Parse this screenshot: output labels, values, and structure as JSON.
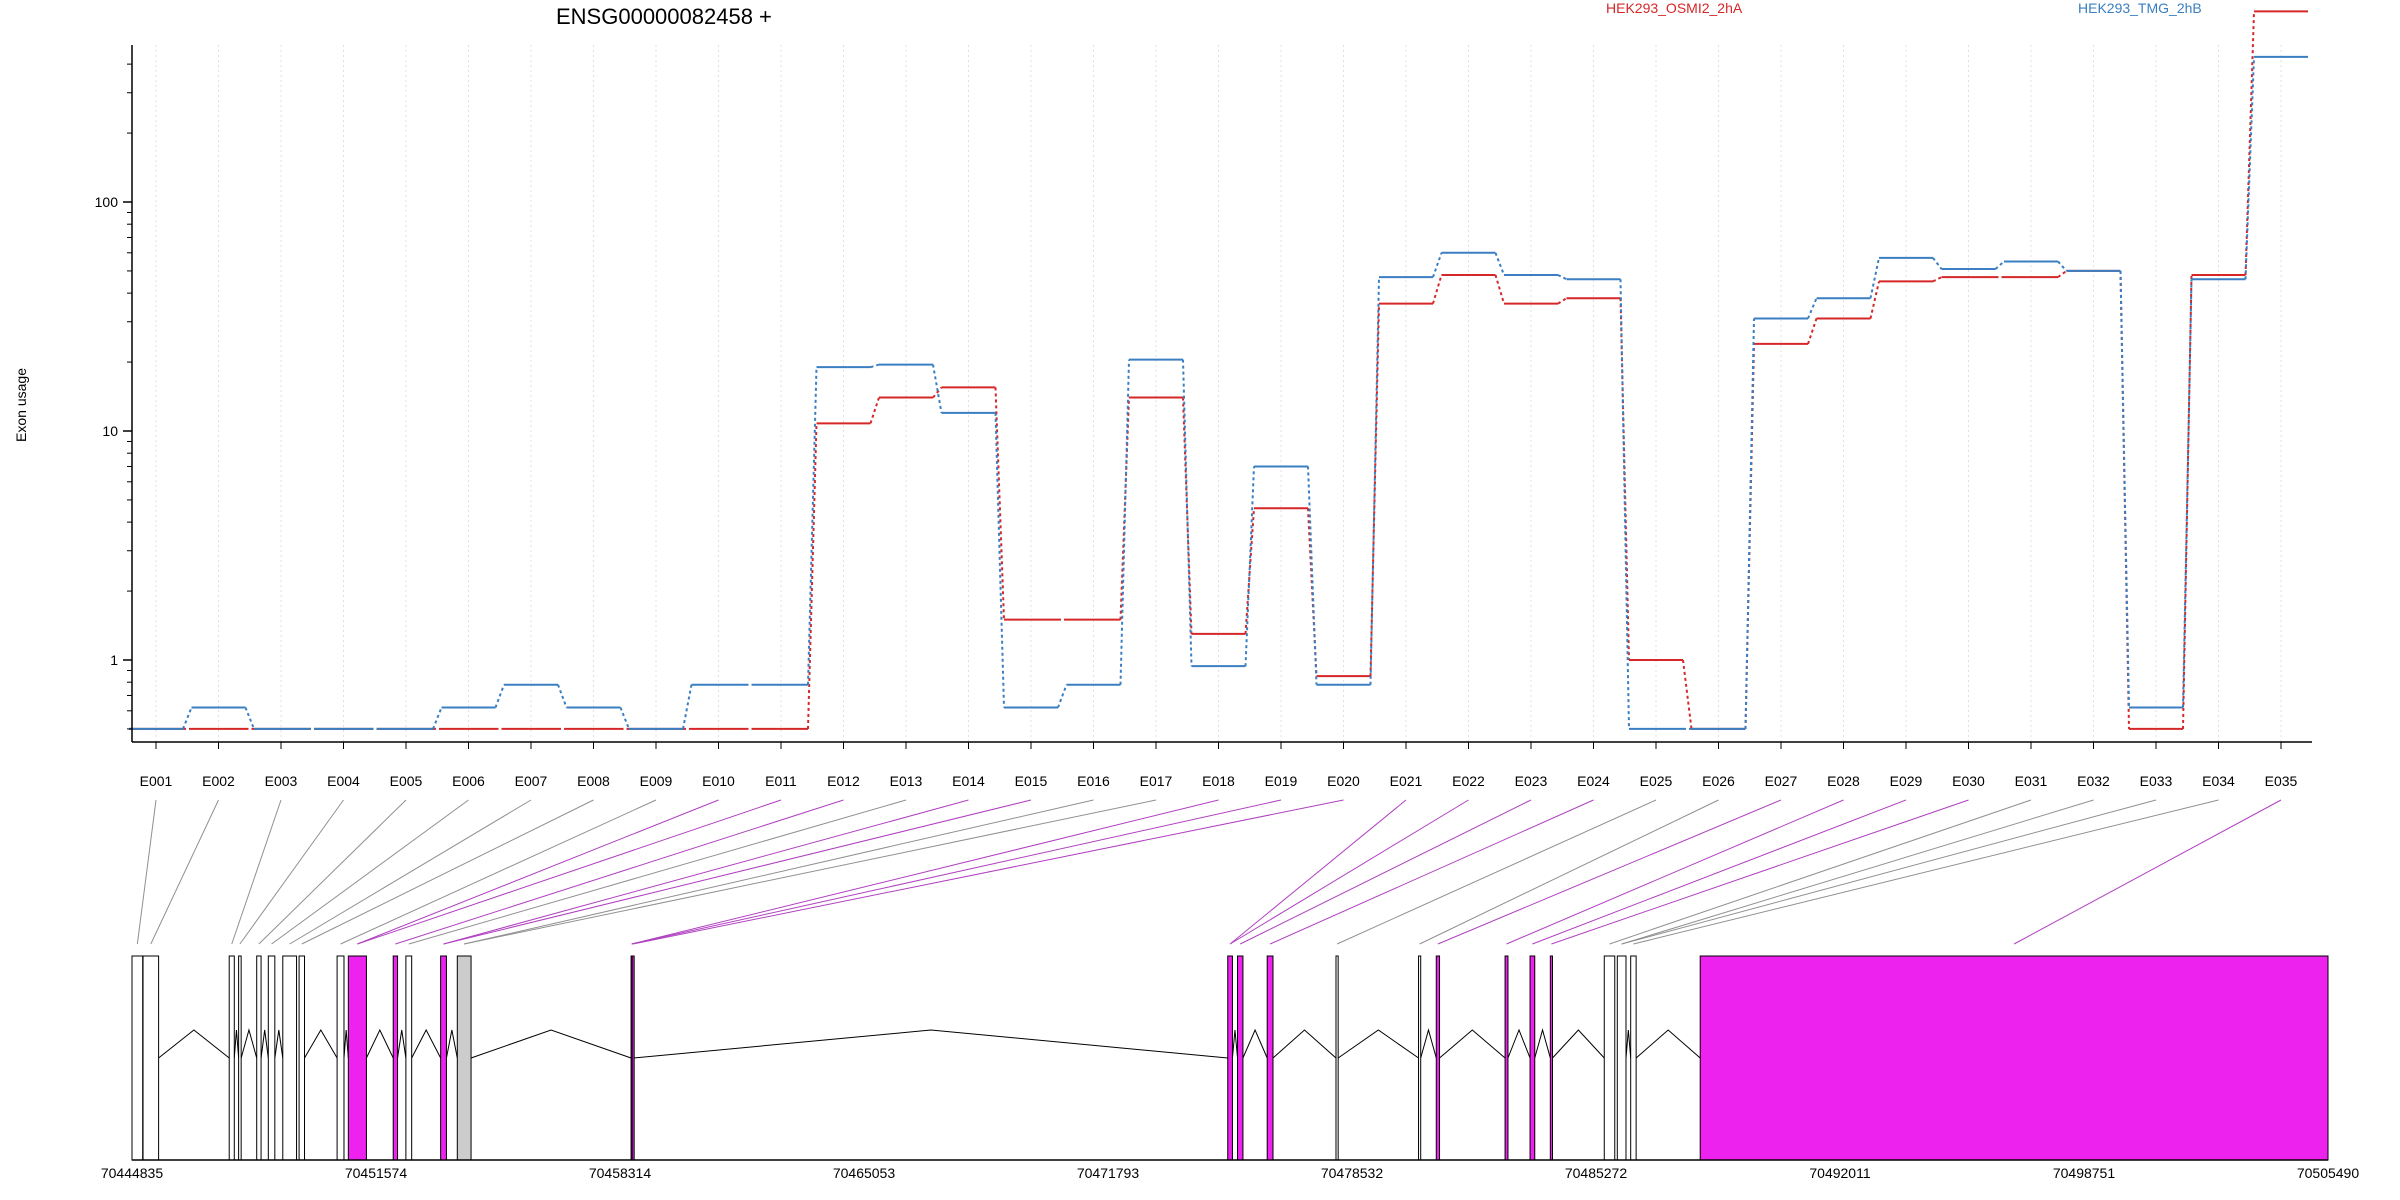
{
  "chart_data": {
    "type": "line",
    "title": "ENSG00000082458 +",
    "ylabel": "Exon usage",
    "y_scale": "log",
    "y_ticks": [
      1,
      10,
      100
    ],
    "y_tick_labels": [
      "1",
      "10",
      "100"
    ],
    "categories": [
      "E001",
      "E002",
      "E003",
      "E004",
      "E005",
      "E006",
      "E007",
      "E008",
      "E009",
      "E010",
      "E011",
      "E012",
      "E013",
      "E014",
      "E015",
      "E016",
      "E017",
      "E018",
      "E019",
      "E020",
      "E021",
      "E022",
      "E023",
      "E024",
      "E025",
      "E026",
      "E027",
      "E028",
      "E029",
      "E030",
      "E031",
      "E032",
      "E033",
      "E034",
      "E035"
    ],
    "series": [
      {
        "name": "HEK293_OSMI2_2hA",
        "color": "#d62728",
        "values": [
          0.5,
          0.5,
          0.5,
          0.5,
          0.5,
          0.5,
          0.5,
          0.5,
          0.5,
          0.5,
          0.5,
          10.8,
          14,
          15.5,
          1.5,
          1.5,
          14,
          1.3,
          4.6,
          0.85,
          36,
          48,
          36,
          38,
          1.0,
          0.5,
          24,
          31,
          45,
          47,
          47,
          50,
          0.5,
          48,
          680
        ]
      },
      {
        "name": "HEK293_TMG_2hB",
        "color": "#3a7fc1",
        "values": [
          0.5,
          0.62,
          0.5,
          0.5,
          0.5,
          0.62,
          0.78,
          0.62,
          0.5,
          0.78,
          0.78,
          19,
          19.5,
          12,
          0.62,
          0.78,
          20.5,
          0.94,
          7,
          0.78,
          47,
          60,
          48,
          46,
          0.5,
          0.5,
          31,
          38,
          57,
          51,
          55,
          50,
          0.62,
          46,
          430
        ]
      }
    ],
    "genome_axis": {
      "tick_labels": [
        "70444835",
        "70451574",
        "70458314",
        "70465053",
        "70471793",
        "70478532",
        "70485272",
        "70492011",
        "70498751",
        "70505490"
      ],
      "start": 70444835,
      "end": 70505490
    },
    "exon_colors": {
      "significant": "#ee22ee",
      "inactive": "#cccccc",
      "default": "#ffffff"
    }
  }
}
